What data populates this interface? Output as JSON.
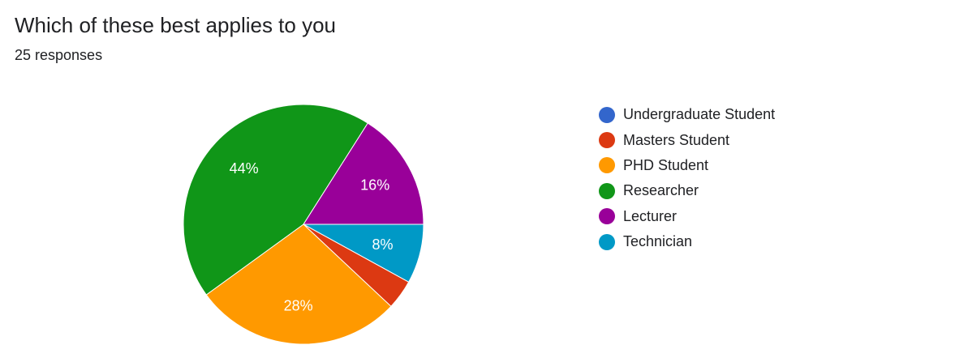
{
  "header": {
    "title": "Which of these best applies to you",
    "responses": "25 responses"
  },
  "chart_data": {
    "type": "pie",
    "categories": [
      "Undergraduate Student",
      "Masters Student",
      "PHD Student",
      "Researcher",
      "Lecturer",
      "Technician"
    ],
    "values": [
      0,
      4,
      28,
      44,
      16,
      8
    ],
    "value_labels": [
      "",
      "",
      "28%",
      "44%",
      "16%",
      "8%"
    ],
    "colors": [
      "#3366cc",
      "#dc3912",
      "#ff9900",
      "#109618",
      "#990099",
      "#0099c6"
    ],
    "legend_position": "right",
    "slice_order": [
      5,
      1,
      2,
      3,
      4
    ]
  }
}
